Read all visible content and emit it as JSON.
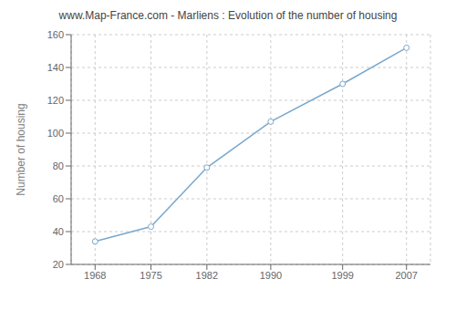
{
  "chart_data": {
    "type": "line",
    "title": "www.Map-France.com - Marliens : Evolution of the number of housing",
    "ylabel": "Number of housing",
    "x": [
      1968,
      1975,
      1982,
      1990,
      1999,
      2007
    ],
    "values": [
      34,
      43,
      79,
      107,
      130,
      152
    ],
    "color": "#7aa8cc",
    "marker": "circle",
    "xlim": [
      1965,
      2010
    ],
    "xticks": [
      1968,
      1975,
      1982,
      1990,
      1999,
      2007
    ],
    "ylim": [
      20,
      160
    ],
    "yticks": [
      20,
      40,
      60,
      80,
      100,
      120,
      140,
      160
    ],
    "grid": true
  }
}
